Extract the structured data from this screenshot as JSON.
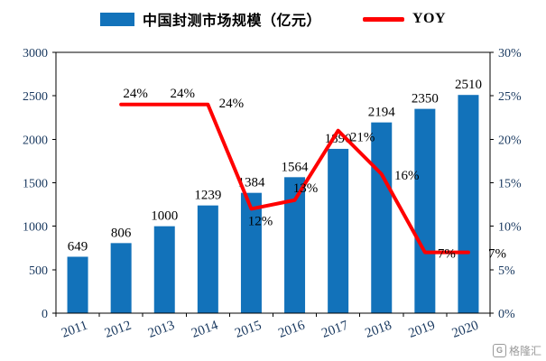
{
  "legend": {
    "bars_label": "中国封测市场规模（亿元）",
    "line_label": "YOY"
  },
  "watermark": {
    "icon_letter": "G",
    "text": "格隆汇"
  },
  "colors": {
    "bar": "#1272BA",
    "line": "#FF0000",
    "axis_text": "#17375E",
    "data_label": "#000000",
    "plot_border": "#000000"
  },
  "chart_data": {
    "type": "bar",
    "subtype": "bar-line-combo",
    "title": "",
    "categories": [
      "2011",
      "2012",
      "2013",
      "2014",
      "2015",
      "2016",
      "2017",
      "2018",
      "2019",
      "2020"
    ],
    "series": [
      {
        "name": "中国封测市场规模（亿元）",
        "type": "bar",
        "axis": "left",
        "values": [
          649,
          806,
          1000,
          1239,
          1384,
          1564,
          1890,
          2194,
          2350,
          2510
        ],
        "data_labels": [
          "649",
          "806",
          "1000",
          "1239",
          "1384",
          "1564",
          "1890",
          "2194",
          "2350",
          "2510"
        ]
      },
      {
        "name": "YOY",
        "type": "line",
        "axis": "right",
        "x": [
          "2012",
          "2013",
          "2014",
          "2015",
          "2016",
          "2017",
          "2018",
          "2019",
          "2020"
        ],
        "values_pct": [
          24,
          24,
          24,
          12,
          13,
          21,
          16,
          7,
          7
        ],
        "data_labels": [
          "24%",
          "24%",
          "24%",
          "12%",
          "13%",
          "21%",
          "16%",
          "7%",
          "7%"
        ]
      }
    ],
    "left_axis": {
      "min": 0,
      "max": 3000,
      "ticks": [
        0,
        500,
        1000,
        1500,
        2000,
        2500,
        3000
      ]
    },
    "right_axis": {
      "min": 0,
      "max": 30,
      "tick_labels": [
        "0%",
        "5%",
        "10%",
        "15%",
        "20%",
        "25%",
        "30%"
      ]
    },
    "grid": false,
    "legend_position": "top"
  }
}
